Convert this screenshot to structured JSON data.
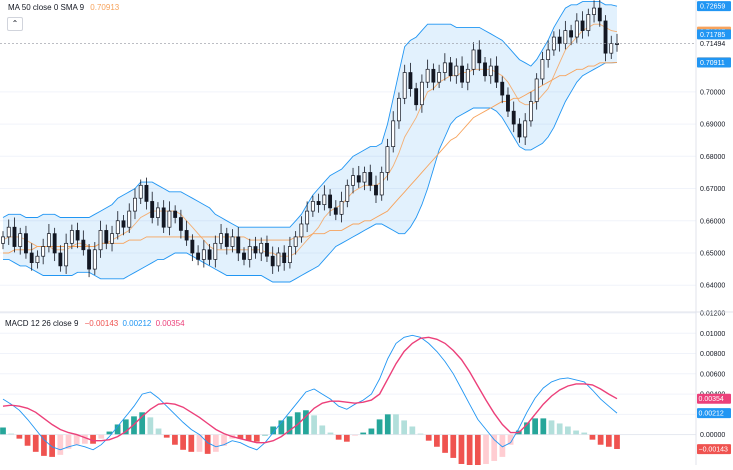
{
  "legend_main": {
    "label": "MA",
    "params": "50 close 0 SMA 9",
    "value": "0.70913"
  },
  "legend_macd": {
    "label": "MACD",
    "params": "12 26 close 9",
    "v1": "−0.00143",
    "v2": "0.00212",
    "v3": "0.00354"
  },
  "colors": {
    "up": "#26a69a",
    "down": "#ef5350",
    "candle": "#131722",
    "band": "#2196f3",
    "ma": "#f7a35c",
    "macd": "#2196f3",
    "signal": "#ec407a",
    "bg": "#ffffff",
    "grid": "#f0f3fa"
  },
  "icons": {
    "collapse": "chevron-up-icon"
  },
  "chart_data": [
    {
      "type": "line",
      "name": "price",
      "ylim": [
        0.632,
        0.7285
      ],
      "yticks": [
        "0.64000",
        "0.65000",
        "0.66000",
        "0.67000",
        "0.68000",
        "0.69000",
        "0.70000"
      ],
      "yticks_values": [
        0.64,
        0.65,
        0.66,
        0.67,
        0.68,
        0.69,
        0.7
      ],
      "price_badges": [
        {
          "label": "0.72659",
          "value": 0.72659,
          "color": "#2196f3"
        },
        {
          "label": "0.71867",
          "value": 0.71867,
          "color": "#f7a35c"
        },
        {
          "label": "0.71785",
          "value": 0.71785,
          "color": "#2196f3"
        },
        {
          "label": "0.71494",
          "value": 0.71494,
          "color": "none"
        },
        {
          "label": "0.70913",
          "value": 0.70913,
          "color": "#e67e22"
        },
        {
          "label": "0.70911",
          "value": 0.70911,
          "color": "#2196f3"
        }
      ],
      "close": [
        0.655,
        0.658,
        0.652,
        0.656,
        0.65,
        0.647,
        0.649,
        0.652,
        0.656,
        0.65,
        0.646,
        0.653,
        0.657,
        0.654,
        0.651,
        0.645,
        0.651,
        0.657,
        0.653,
        0.656,
        0.66,
        0.658,
        0.663,
        0.667,
        0.671,
        0.666,
        0.661,
        0.664,
        0.658,
        0.663,
        0.661,
        0.657,
        0.654,
        0.65,
        0.648,
        0.651,
        0.648,
        0.653,
        0.656,
        0.652,
        0.655,
        0.65,
        0.648,
        0.652,
        0.65,
        0.653,
        0.649,
        0.646,
        0.65,
        0.647,
        0.652,
        0.655,
        0.659,
        0.663,
        0.666,
        0.665,
        0.668,
        0.664,
        0.662,
        0.666,
        0.671,
        0.674,
        0.672,
        0.675,
        0.671,
        0.668,
        0.675,
        0.683,
        0.691,
        0.698,
        0.706,
        0.701,
        0.696,
        0.703,
        0.707,
        0.703,
        0.706,
        0.709,
        0.705,
        0.708,
        0.703,
        0.707,
        0.713,
        0.709,
        0.705,
        0.708,
        0.703,
        0.699,
        0.694,
        0.69,
        0.686,
        0.691,
        0.697,
        0.704,
        0.71,
        0.713,
        0.717,
        0.715,
        0.719,
        0.717,
        0.722,
        0.719,
        0.724,
        0.726,
        0.722,
        0.712,
        0.715,
        0.71494
      ],
      "ma50": [
        0.65,
        0.65,
        0.651,
        0.651,
        0.651,
        0.651,
        0.652,
        0.652,
        0.652,
        0.652,
        0.652,
        0.652,
        0.652,
        0.652,
        0.652,
        0.652,
        0.652,
        0.653,
        0.653,
        0.653,
        0.653,
        0.653,
        0.654,
        0.654,
        0.654,
        0.655,
        0.655,
        0.655,
        0.655,
        0.655,
        0.655,
        0.655,
        0.655,
        0.655,
        0.655,
        0.655,
        0.655,
        0.655,
        0.655,
        0.655,
        0.655,
        0.655,
        0.655,
        0.654,
        0.654,
        0.654,
        0.654,
        0.654,
        0.654,
        0.654,
        0.654,
        0.655,
        0.655,
        0.655,
        0.656,
        0.656,
        0.656,
        0.657,
        0.657,
        0.657,
        0.658,
        0.659,
        0.659,
        0.66,
        0.66,
        0.661,
        0.662,
        0.663,
        0.665,
        0.667,
        0.669,
        0.671,
        0.673,
        0.675,
        0.677,
        0.679,
        0.681,
        0.683,
        0.685,
        0.686,
        0.688,
        0.69,
        0.692,
        0.693,
        0.694,
        0.695,
        0.696,
        0.697,
        0.697,
        0.698,
        0.698,
        0.699,
        0.7,
        0.701,
        0.702,
        0.703,
        0.704,
        0.705,
        0.705,
        0.706,
        0.707,
        0.707,
        0.708,
        0.708,
        0.709,
        0.709,
        0.709,
        0.70913
      ],
      "ma9": [
        0.654,
        0.655,
        0.655,
        0.655,
        0.654,
        0.653,
        0.652,
        0.652,
        0.652,
        0.651,
        0.651,
        0.651,
        0.652,
        0.653,
        0.653,
        0.652,
        0.652,
        0.653,
        0.653,
        0.654,
        0.655,
        0.656,
        0.657,
        0.659,
        0.661,
        0.662,
        0.663,
        0.663,
        0.663,
        0.663,
        0.663,
        0.662,
        0.66,
        0.658,
        0.656,
        0.654,
        0.652,
        0.651,
        0.651,
        0.651,
        0.651,
        0.651,
        0.651,
        0.651,
        0.651,
        0.651,
        0.65,
        0.65,
        0.649,
        0.649,
        0.649,
        0.65,
        0.652,
        0.654,
        0.656,
        0.658,
        0.661,
        0.663,
        0.664,
        0.665,
        0.667,
        0.669,
        0.67,
        0.671,
        0.671,
        0.671,
        0.672,
        0.674,
        0.677,
        0.681,
        0.686,
        0.689,
        0.692,
        0.696,
        0.7,
        0.701,
        0.703,
        0.704,
        0.705,
        0.705,
        0.706,
        0.706,
        0.707,
        0.707,
        0.707,
        0.707,
        0.706,
        0.705,
        0.703,
        0.7,
        0.697,
        0.696,
        0.696,
        0.697,
        0.699,
        0.701,
        0.705,
        0.709,
        0.713,
        0.715,
        0.717,
        0.719,
        0.72,
        0.721,
        0.721,
        0.72,
        0.719,
        0.71867
      ],
      "bb_upper": [
        0.661,
        0.662,
        0.662,
        0.662,
        0.661,
        0.661,
        0.661,
        0.662,
        0.662,
        0.662,
        0.661,
        0.661,
        0.661,
        0.661,
        0.661,
        0.661,
        0.662,
        0.663,
        0.664,
        0.665,
        0.667,
        0.668,
        0.669,
        0.67,
        0.672,
        0.672,
        0.672,
        0.671,
        0.67,
        0.669,
        0.669,
        0.669,
        0.668,
        0.667,
        0.666,
        0.665,
        0.664,
        0.662,
        0.661,
        0.66,
        0.659,
        0.658,
        0.658,
        0.658,
        0.658,
        0.658,
        0.658,
        0.658,
        0.658,
        0.658,
        0.658,
        0.66,
        0.662,
        0.665,
        0.668,
        0.67,
        0.672,
        0.674,
        0.675,
        0.676,
        0.678,
        0.68,
        0.681,
        0.682,
        0.683,
        0.683,
        0.684,
        0.69,
        0.698,
        0.706,
        0.714,
        0.716,
        0.717,
        0.719,
        0.721,
        0.721,
        0.721,
        0.721,
        0.721,
        0.72,
        0.72,
        0.72,
        0.72,
        0.72,
        0.719,
        0.718,
        0.717,
        0.716,
        0.714,
        0.712,
        0.71,
        0.709,
        0.708,
        0.71,
        0.713,
        0.716,
        0.72,
        0.723,
        0.726,
        0.727,
        0.727,
        0.728,
        0.728,
        0.728,
        0.728,
        0.727,
        0.727,
        0.72659
      ],
      "bb_lower": [
        0.648,
        0.648,
        0.647,
        0.646,
        0.646,
        0.645,
        0.644,
        0.643,
        0.643,
        0.643,
        0.643,
        0.643,
        0.643,
        0.644,
        0.644,
        0.644,
        0.643,
        0.642,
        0.642,
        0.642,
        0.642,
        0.642,
        0.643,
        0.644,
        0.645,
        0.646,
        0.647,
        0.648,
        0.648,
        0.649,
        0.65,
        0.65,
        0.65,
        0.649,
        0.648,
        0.647,
        0.646,
        0.645,
        0.644,
        0.643,
        0.643,
        0.643,
        0.643,
        0.643,
        0.643,
        0.643,
        0.642,
        0.641,
        0.641,
        0.641,
        0.641,
        0.642,
        0.643,
        0.644,
        0.645,
        0.646,
        0.648,
        0.65,
        0.652,
        0.653,
        0.654,
        0.655,
        0.656,
        0.657,
        0.658,
        0.659,
        0.659,
        0.658,
        0.657,
        0.656,
        0.656,
        0.658,
        0.661,
        0.665,
        0.67,
        0.676,
        0.682,
        0.686,
        0.69,
        0.692,
        0.693,
        0.694,
        0.695,
        0.695,
        0.695,
        0.695,
        0.694,
        0.692,
        0.689,
        0.686,
        0.683,
        0.682,
        0.682,
        0.683,
        0.684,
        0.686,
        0.689,
        0.693,
        0.697,
        0.7,
        0.703,
        0.705,
        0.706,
        0.707,
        0.708,
        0.709,
        0.709,
        0.70911
      ]
    },
    {
      "type": "bar",
      "name": "macd",
      "ylim": [
        -0.003,
        0.012
      ],
      "yticks": [
        "0.00000",
        "0.00200",
        "0.00400",
        "0.00600",
        "0.00800",
        "0.01000",
        "0.01200"
      ],
      "yticks_values": [
        0,
        0.002,
        0.004,
        0.006,
        0.008,
        0.01,
        0.012
      ],
      "badges": [
        {
          "label": "0.00354",
          "value": 0.00354,
          "color": "#ec407a"
        },
        {
          "label": "0.00212",
          "value": 0.00212,
          "color": "#2196f3"
        },
        {
          "label": "−0.00143",
          "value": -0.00143,
          "color": "#ef5350"
        }
      ],
      "macd": [
        0.0035,
        0.003,
        0.0024,
        0.0015,
        0.0005,
        -0.0005,
        -0.0012,
        -0.0015,
        -0.0012,
        -0.001,
        -0.0012,
        -0.0015,
        -0.001,
        -0.0002,
        0.0008,
        0.0018,
        0.0028,
        0.004,
        0.0042,
        0.0036,
        0.0028,
        0.002,
        0.0012,
        0.0005,
        0.0,
        -0.0008,
        -0.0012,
        -0.001,
        -0.0006,
        -0.0008,
        -0.0012,
        -0.0015,
        -0.0008,
        0.0002,
        0.0012,
        0.0022,
        0.0032,
        0.0042,
        0.0045,
        0.004,
        0.0035,
        0.0028,
        0.0025,
        0.003,
        0.0034,
        0.004,
        0.0055,
        0.0075,
        0.009,
        0.0096,
        0.0098,
        0.0096,
        0.009,
        0.0082,
        0.0072,
        0.006,
        0.0045,
        0.003,
        0.0015,
        0.0005,
        -0.0005,
        -0.0012,
        -0.0008,
        0.0006,
        0.0022,
        0.0036,
        0.0046,
        0.0052,
        0.0055,
        0.0056,
        0.0054,
        0.0052,
        0.0044,
        0.0035,
        0.0028,
        0.00212
      ],
      "signal": [
        0.0028,
        0.0029,
        0.0028,
        0.0026,
        0.0022,
        0.0016,
        0.001,
        0.0005,
        0.0002,
        0.0,
        -0.0003,
        -0.0006,
        -0.0006,
        -0.0005,
        -0.0002,
        0.0003,
        0.001,
        0.0018,
        0.0025,
        0.003,
        0.0031,
        0.003,
        0.0027,
        0.0022,
        0.0017,
        0.0011,
        0.0005,
        0.0001,
        -0.0002,
        -0.0004,
        -0.0006,
        -0.0008,
        -0.0008,
        -0.0006,
        -0.0002,
        0.0004,
        0.001,
        0.0018,
        0.0026,
        0.0031,
        0.0033,
        0.0033,
        0.0032,
        0.0031,
        0.0032,
        0.0034,
        0.004,
        0.0055,
        0.007,
        0.0082,
        0.009,
        0.0095,
        0.0096,
        0.0094,
        0.009,
        0.0083,
        0.0074,
        0.0062,
        0.0048,
        0.0034,
        0.0021,
        0.001,
        0.0002,
        0.0002,
        0.001,
        0.002,
        0.003,
        0.0038,
        0.0044,
        0.0048,
        0.005,
        0.005,
        0.0049,
        0.0045,
        0.004,
        0.00354
      ]
    }
  ]
}
